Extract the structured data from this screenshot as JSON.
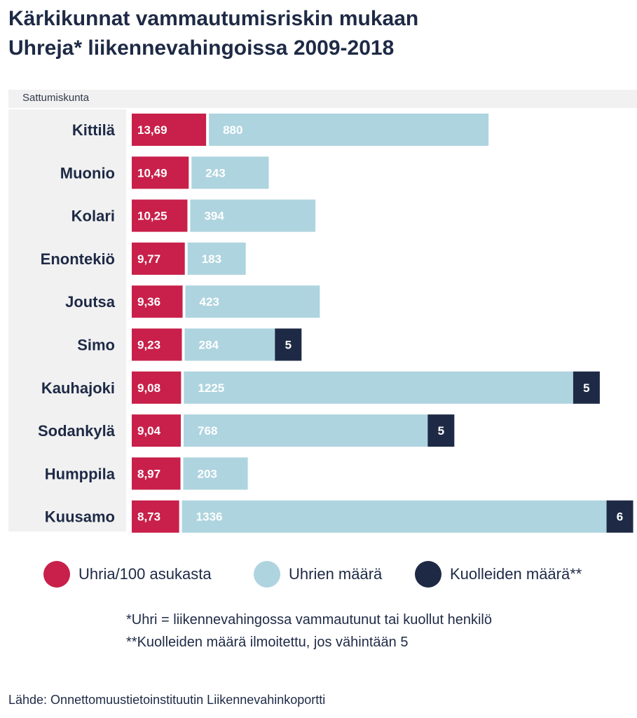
{
  "title": {
    "line1": "Kärkikunnat vammautumisriskin mukaan",
    "line2": "Uhreja* liikennevahingoissa 2009-2018"
  },
  "column_header": "Sattumiskunta",
  "colors": {
    "per100": "#c8204a",
    "victims": "#aed4df",
    "deaths": "#1e2a45"
  },
  "legend": [
    {
      "key": "per100",
      "label": "Uhria/100 asukasta"
    },
    {
      "key": "victims",
      "label": "Uhrien määrä"
    },
    {
      "key": "deaths",
      "label": "Kuolleiden määrä**"
    }
  ],
  "notes": [
    "*Uhri = liikennevahingossa vammautunut tai kuollut henkilö",
    "**Kuolleiden määrä ilmoitettu, jos vähintään 5"
  ],
  "source": "Lähde: Onnettomuustietoinstituutin Liikennevahinkoportti",
  "chart_data": {
    "type": "bar",
    "orientation": "horizontal",
    "stacked": true,
    "categories": [
      "Kittilä",
      "Muonio",
      "Kolari",
      "Enontekiö",
      "Joutsa",
      "Simo",
      "Kauhajoki",
      "Sodankylä",
      "Humppila",
      "Kuusamo"
    ],
    "series": [
      {
        "name": "Uhria/100 asukasta",
        "key": "per100",
        "values": [
          13.69,
          10.49,
          10.25,
          9.77,
          9.36,
          9.23,
          9.08,
          9.04,
          8.97,
          8.73
        ],
        "labels": [
          "13,69",
          "10,49",
          "10,25",
          "9,77",
          "9,36",
          "9,23",
          "9,08",
          "9,04",
          "8,97",
          "8,73"
        ]
      },
      {
        "name": "Uhrien määrä",
        "key": "victims",
        "values": [
          880,
          243,
          394,
          183,
          423,
          284,
          1225,
          768,
          203,
          1336
        ],
        "labels": [
          "880",
          "243",
          "394",
          "183",
          "423",
          "284",
          "1225",
          "768",
          "203",
          "1336"
        ]
      },
      {
        "name": "Kuolleiden määrä**",
        "key": "deaths",
        "values": [
          null,
          null,
          null,
          null,
          null,
          5,
          5,
          5,
          null,
          6
        ],
        "labels": [
          "",
          "",
          "",
          "",
          "",
          "5",
          "5",
          "5",
          "",
          "6"
        ]
      }
    ]
  }
}
